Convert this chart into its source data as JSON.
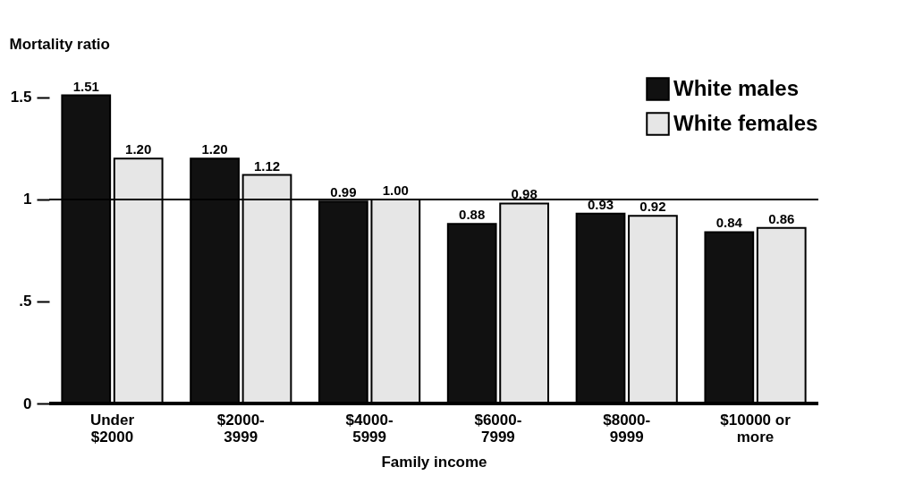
{
  "chart_data": {
    "type": "bar",
    "xlabel": "Family income",
    "ylabel": "Mortality ratio",
    "categories": [
      "Under $2000",
      "$2000-3999",
      "$4000-5999",
      "$6000-7999",
      "$8000-9999",
      "$10000 or more"
    ],
    "series": [
      {
        "name": "White males",
        "color": "#111111",
        "values": [
          1.51,
          1.2,
          0.99,
          0.88,
          0.93,
          0.84
        ],
        "value_labels": [
          "1.51",
          "1.20",
          "0.99",
          "0.88",
          "0.93",
          "0.84"
        ]
      },
      {
        "name": "White females",
        "color": "#e6e6e6",
        "values": [
          1.2,
          1.12,
          1.0,
          0.98,
          0.92,
          0.86
        ],
        "value_labels": [
          "1.20",
          "1.12",
          "1.00",
          "0.98",
          "0.92",
          "0.86"
        ]
      }
    ],
    "ylim": [
      0,
      1.6
    ],
    "yticks": [
      0,
      {
        "value": 0.5,
        "label": ".5"
      },
      1,
      1.5
    ],
    "ref_lines": [
      {
        "axis": "y",
        "value": 1
      }
    ],
    "legend": "top right",
    "grid": false
  }
}
